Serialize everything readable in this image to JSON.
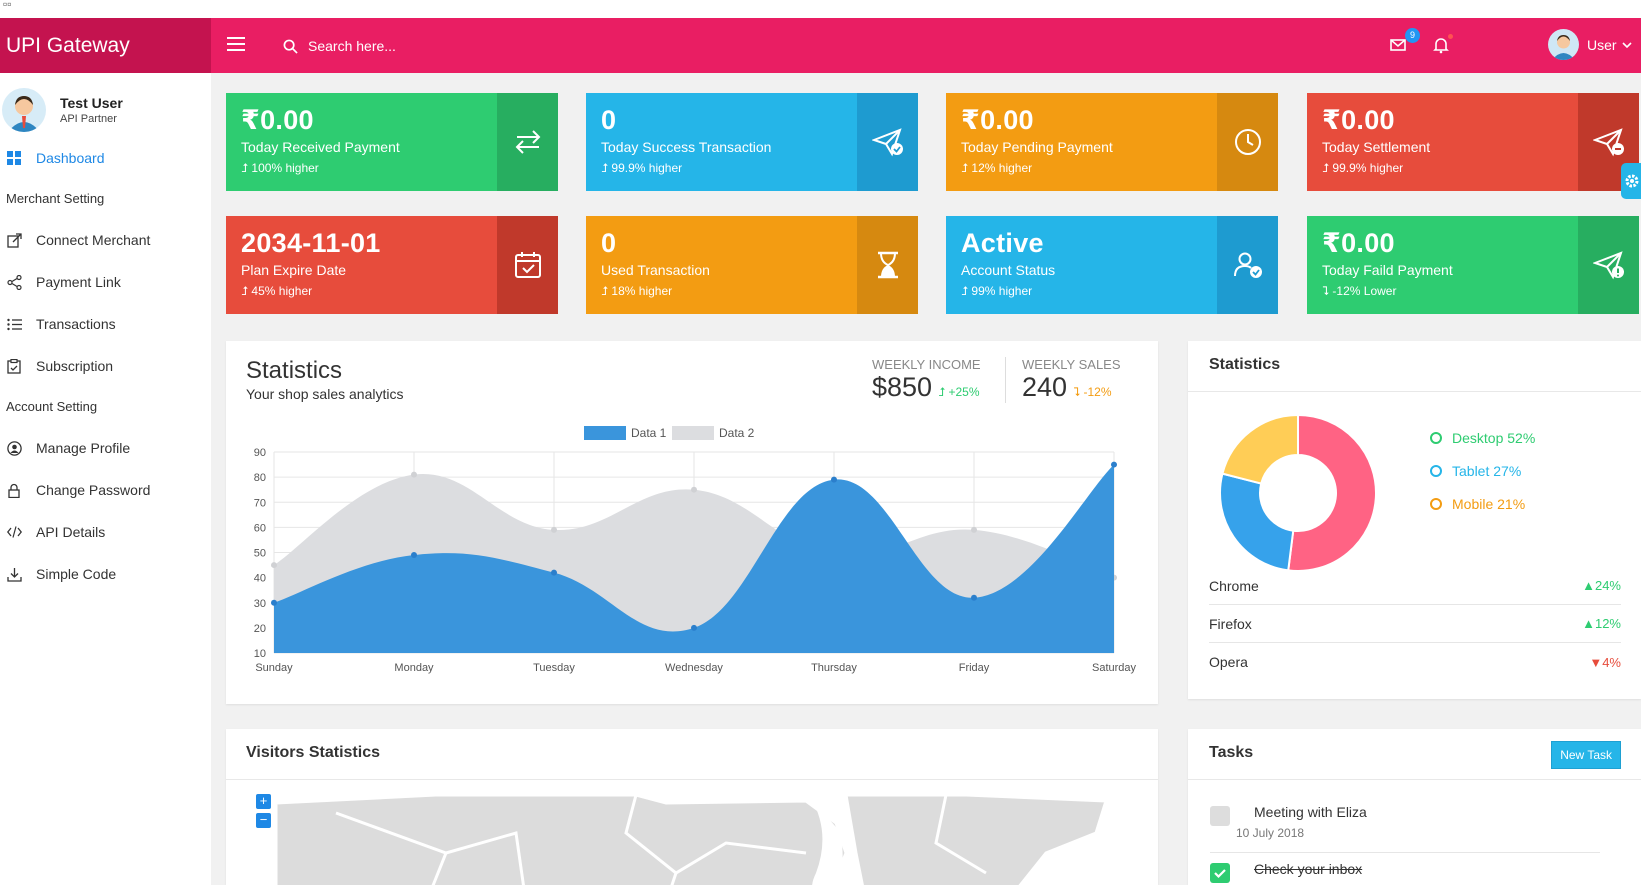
{
  "app": {
    "title": "UPI Gateway"
  },
  "header": {
    "search_placeholder": "Search here...",
    "mail_count": "9",
    "user_label": "User"
  },
  "sidebar": {
    "user_name": "Test User",
    "user_role": "API Partner",
    "dashboard": "Dashboard",
    "merchant_header": "Merchant Setting",
    "connect_merchant": "Connect Merchant",
    "payment_link": "Payment Link",
    "transactions": "Transactions",
    "subscription": "Subscription",
    "account_header": "Account Setting",
    "manage_profile": "Manage Profile",
    "change_password": "Change Password",
    "api_details": "API Details",
    "simple_code": "Simple Code"
  },
  "cards": [
    {
      "value": "₹0.00",
      "label": "Today Received Payment",
      "trend": "100% higher",
      "color": "#2ecc71",
      "icon": "arrows-swap-icon"
    },
    {
      "value": "0",
      "label": "Today Success Transaction",
      "trend": "99.9% higher",
      "color": "#25b5e8",
      "icon": "paper-plane-check-icon"
    },
    {
      "value": "₹0.00",
      "label": "Today Pending Payment",
      "trend": "12% higher",
      "color": "#f39c12",
      "icon": "clock-icon"
    },
    {
      "value": "₹0.00",
      "label": "Today Settlement",
      "trend": "99.9% higher",
      "color": "#e74c3c",
      "icon": "paper-plane-minus-icon"
    },
    {
      "value": "2034-11-01",
      "label": "Plan Expire Date",
      "trend": "45% higher",
      "color": "#e74c3c",
      "icon": "calendar-check-icon"
    },
    {
      "value": "0",
      "label": "Used Transaction",
      "trend": "18% higher",
      "color": "#f39c12",
      "icon": "hourglass-icon"
    },
    {
      "value": "Active",
      "label": "Account Status",
      "trend": "99% higher",
      "color": "#25b5e8",
      "icon": "user-check-icon"
    },
    {
      "value": "₹0.00",
      "label": "Today Faild Payment",
      "trend": "-12% Lower",
      "color": "#2ecc71",
      "icon": "paper-plane-alert-icon"
    }
  ],
  "statistics": {
    "title": "Statistics",
    "subtitle": "Your shop sales analytics",
    "weekly_income_label": "WEEKLY INCOME",
    "weekly_income_value": "$850",
    "weekly_income_trend": "+25%",
    "weekly_sales_label": "WEEKLY SALES",
    "weekly_sales_value": "240",
    "weekly_sales_trend": "-12%"
  },
  "chart_data": [
    {
      "type": "area",
      "categories": [
        "Sunday",
        "Monday",
        "Tuesday",
        "Wednesday",
        "Thursday",
        "Friday",
        "Saturday"
      ],
      "series": [
        {
          "name": "Data 1",
          "values": [
            30,
            49,
            42,
            20,
            79,
            32,
            85
          ],
          "color": "#3a95dc"
        },
        {
          "name": "Data 2",
          "values": [
            45,
            81,
            59,
            75,
            49,
            59,
            40
          ],
          "color": "#dcdde0"
        }
      ],
      "ylim": [
        10,
        90
      ],
      "yticks": [
        10,
        20,
        30,
        40,
        50,
        60,
        70,
        80,
        90
      ],
      "legend": "top-center",
      "grid": true
    },
    {
      "type": "pie",
      "title": "Statistics",
      "labels": [
        "Desktop",
        "Tablet",
        "Mobile"
      ],
      "values": [
        52,
        27,
        21
      ],
      "colors": [
        "#ff6384",
        "#36a2eb",
        "#ffcd56"
      ],
      "legend_text": [
        "Desktop 52%",
        "Tablet 27%",
        "Mobile 21%"
      ],
      "legend_colors": [
        "#2ecc71",
        "#25b5e8",
        "#f39c12"
      ]
    }
  ],
  "browsers": [
    {
      "name": "Chrome",
      "value": "24%",
      "dir": "up"
    },
    {
      "name": "Firefox",
      "value": "12%",
      "dir": "up"
    },
    {
      "name": "Opera",
      "value": "4%",
      "dir": "down"
    }
  ],
  "visitors": {
    "title": "Visitors Statistics"
  },
  "tasks": {
    "title": "Tasks",
    "new_task": "New Task",
    "items": [
      {
        "title": "Meeting with Eliza",
        "date": "10 July 2018",
        "done": false
      },
      {
        "title": "Check your inbox",
        "date": "",
        "done": true
      }
    ]
  }
}
